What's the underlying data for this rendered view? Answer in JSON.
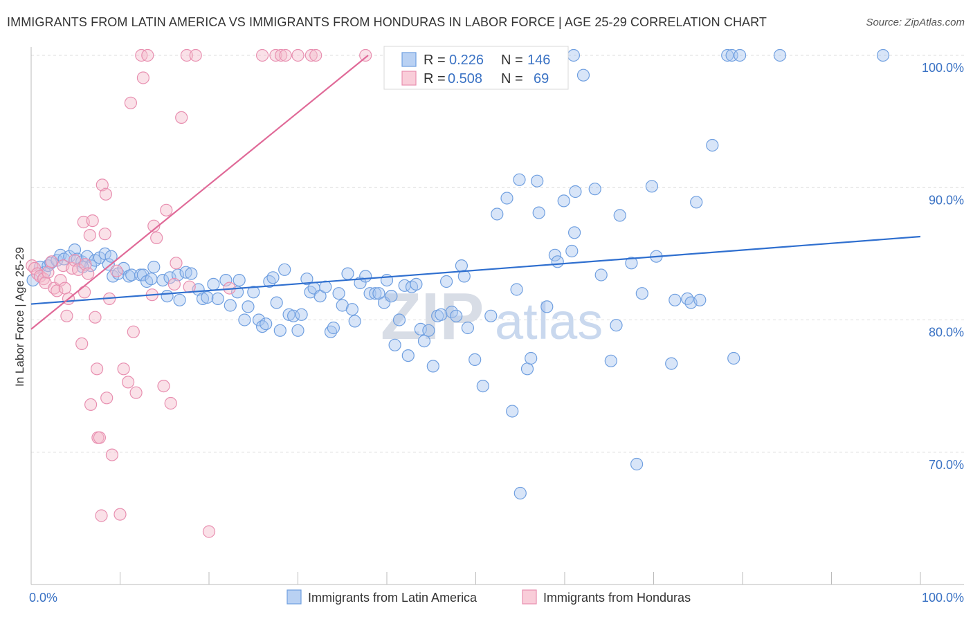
{
  "title": "IMMIGRANTS FROM LATIN AMERICA VS IMMIGRANTS FROM HONDURAS IN LABOR FORCE | AGE 25-29 CORRELATION CHART",
  "source": "Source: ZipAtlas.com",
  "watermark": {
    "zip": "ZIP",
    "atlas": "atlas"
  },
  "chart_data": {
    "type": "scatter",
    "xlabel": "",
    "ylabel": "In Labor Force | Age 25-29",
    "xlim": [
      0,
      100
    ],
    "ylim": [
      60,
      100
    ],
    "x_tick_labels": [
      "0.0%",
      "100.0%"
    ],
    "y_ticks": [
      70,
      80,
      90,
      100
    ],
    "y_tick_labels": [
      "70.0%",
      "80.0%",
      "90.0%",
      "100.0%"
    ],
    "grid": true,
    "legend_position": "bottom",
    "stats": [
      {
        "r_label": "R =",
        "r": "0.226",
        "n_label": "N =",
        "n": "146"
      },
      {
        "r_label": "R =",
        "r": "0.508",
        "n_label": "N =",
        "n": "69"
      }
    ],
    "series": [
      {
        "name": "Immigrants from Latin America",
        "color": "#6f9fe0",
        "fill": "#a9c6ef",
        "trend": {
          "x": [
            0,
            100
          ],
          "y": [
            81.2,
            86.3
          ]
        },
        "points": [
          [
            0.2,
            83.0
          ],
          [
            1.0,
            84.0
          ],
          [
            1.5,
            83.6
          ],
          [
            1.9,
            84.1
          ],
          [
            2.2,
            84.3
          ],
          [
            2.9,
            84.5
          ],
          [
            3.3,
            84.9
          ],
          [
            3.7,
            84.6
          ],
          [
            4.3,
            84.8
          ],
          [
            4.9,
            85.3
          ],
          [
            5.2,
            84.6
          ],
          [
            5.7,
            84.4
          ],
          [
            6.3,
            84.8
          ],
          [
            6.7,
            84.1
          ],
          [
            7.2,
            84.5
          ],
          [
            7.7,
            84.7
          ],
          [
            8.3,
            85.0
          ],
          [
            8.7,
            84.2
          ],
          [
            9.2,
            83.3
          ],
          [
            9.8,
            83.5
          ],
          [
            10.4,
            83.9
          ],
          [
            11.0,
            83.3
          ],
          [
            11.3,
            83.4
          ],
          [
            12.3,
            83.4
          ],
          [
            12.6,
            83.4
          ],
          [
            13.0,
            82.9
          ],
          [
            13.5,
            83.1
          ],
          [
            13.8,
            84.0
          ],
          [
            14.8,
            83.0
          ],
          [
            15.3,
            81.8
          ],
          [
            15.6,
            83.2
          ],
          [
            16.5,
            83.4
          ],
          [
            16.7,
            81.5
          ],
          [
            17.4,
            83.6
          ],
          [
            18.0,
            83.5
          ],
          [
            18.8,
            82.3
          ],
          [
            19.3,
            81.6
          ],
          [
            19.8,
            81.7
          ],
          [
            20.5,
            82.7
          ],
          [
            21.0,
            81.6
          ],
          [
            21.9,
            83.0
          ],
          [
            22.4,
            81.1
          ],
          [
            23.2,
            82.1
          ],
          [
            23.4,
            83.0
          ],
          [
            24.0,
            80.0
          ],
          [
            24.4,
            81.0
          ],
          [
            25.0,
            82.1
          ],
          [
            25.6,
            80.0
          ],
          [
            26.0,
            79.5
          ],
          [
            26.4,
            79.7
          ],
          [
            26.8,
            82.9
          ],
          [
            27.2,
            83.2
          ],
          [
            27.6,
            81.3
          ],
          [
            28.0,
            79.2
          ],
          [
            28.5,
            83.8
          ],
          [
            29.0,
            80.4
          ],
          [
            29.5,
            80.3
          ],
          [
            30.0,
            79.2
          ],
          [
            30.4,
            80.4
          ],
          [
            31.0,
            83.1
          ],
          [
            31.4,
            82.1
          ],
          [
            31.8,
            82.4
          ],
          [
            32.5,
            81.8
          ],
          [
            33.1,
            82.5
          ],
          [
            33.7,
            79.1
          ],
          [
            34.0,
            79.4
          ],
          [
            34.6,
            82.0
          ],
          [
            35.0,
            81.1
          ],
          [
            35.6,
            83.5
          ],
          [
            36.1,
            80.8
          ],
          [
            36.4,
            79.9
          ],
          [
            37.0,
            82.8
          ],
          [
            37.6,
            83.3
          ],
          [
            38.1,
            82.0
          ],
          [
            38.7,
            82.0
          ],
          [
            39.1,
            82.0
          ],
          [
            39.7,
            81.3
          ],
          [
            40.0,
            83.0
          ],
          [
            40.5,
            81.8
          ],
          [
            40.9,
            78.1
          ],
          [
            41.4,
            80.0
          ],
          [
            42.0,
            82.6
          ],
          [
            42.4,
            77.3
          ],
          [
            42.8,
            82.5
          ],
          [
            43.3,
            82.7
          ],
          [
            43.8,
            79.3
          ],
          [
            44.2,
            78.4
          ],
          [
            44.7,
            79.2
          ],
          [
            45.2,
            76.5
          ],
          [
            45.7,
            80.3
          ],
          [
            46.1,
            80.4
          ],
          [
            46.7,
            82.9
          ],
          [
            47.3,
            80.6
          ],
          [
            47.8,
            80.3
          ],
          [
            48.4,
            84.1
          ],
          [
            48.7,
            83.3
          ],
          [
            49.1,
            79.4
          ],
          [
            49.9,
            77.0
          ],
          [
            50.8,
            75.0
          ],
          [
            51.7,
            80.3
          ],
          [
            52.4,
            88.0
          ],
          [
            53.5,
            89.2
          ],
          [
            54.1,
            73.1
          ],
          [
            54.6,
            82.3
          ],
          [
            54.9,
            90.6
          ],
          [
            55.0,
            66.9
          ],
          [
            55.8,
            76.3
          ],
          [
            56.2,
            77.1
          ],
          [
            56.9,
            90.5
          ],
          [
            57.1,
            88.1
          ],
          [
            58.0,
            81.0
          ],
          [
            58.9,
            84.9
          ],
          [
            59.2,
            84.4
          ],
          [
            59.9,
            89.0
          ],
          [
            60.8,
            85.2
          ],
          [
            61.1,
            86.6
          ],
          [
            61.2,
            89.7
          ],
          [
            62.1,
            98.5
          ],
          [
            63.4,
            89.9
          ],
          [
            64.1,
            83.4
          ],
          [
            65.2,
            76.9
          ],
          [
            65.8,
            79.6
          ],
          [
            66.2,
            87.9
          ],
          [
            67.5,
            84.3
          ],
          [
            68.1,
            69.1
          ],
          [
            68.7,
            82.0
          ],
          [
            69.8,
            90.1
          ],
          [
            70.3,
            84.8
          ],
          [
            72.0,
            76.7
          ],
          [
            72.4,
            81.5
          ],
          [
            73.8,
            81.6
          ],
          [
            74.2,
            81.3
          ],
          [
            74.8,
            88.9
          ],
          [
            75.2,
            81.5
          ],
          [
            76.6,
            93.2
          ],
          [
            78.3,
            100.0
          ],
          [
            78.8,
            100.0
          ],
          [
            79.0,
            77.1
          ],
          [
            79.7,
            100.0
          ],
          [
            84.2,
            100.0
          ],
          [
            95.8,
            100.0
          ],
          [
            55.5,
            100.0
          ],
          [
            57.8,
            100.0
          ],
          [
            61.0,
            100.0
          ],
          [
            5.8,
            84.0
          ],
          [
            9.0,
            84.8
          ]
        ]
      },
      {
        "name": "Immigrants from Honduras",
        "color": "#e88fb0",
        "fill": "#f5bccd",
        "trend": {
          "x": [
            0,
            37.9
          ],
          "y": [
            79.3,
            100.0
          ]
        },
        "points": [
          [
            0.1,
            84.1
          ],
          [
            0.4,
            83.9
          ],
          [
            0.7,
            83.5
          ],
          [
            1.0,
            83.3
          ],
          [
            1.4,
            83.1
          ],
          [
            1.6,
            82.8
          ],
          [
            1.9,
            83.6
          ],
          [
            2.3,
            84.4
          ],
          [
            2.6,
            82.4
          ],
          [
            2.9,
            82.2
          ],
          [
            3.3,
            83.0
          ],
          [
            3.6,
            84.1
          ],
          [
            3.8,
            82.4
          ],
          [
            4.0,
            80.3
          ],
          [
            4.2,
            81.6
          ],
          [
            4.6,
            83.9
          ],
          [
            4.9,
            84.5
          ],
          [
            5.3,
            83.8
          ],
          [
            5.7,
            78.2
          ],
          [
            5.9,
            87.4
          ],
          [
            6.0,
            82.1
          ],
          [
            6.1,
            84.2
          ],
          [
            6.4,
            83.5
          ],
          [
            6.6,
            86.4
          ],
          [
            6.7,
            73.6
          ],
          [
            6.9,
            87.5
          ],
          [
            7.2,
            80.2
          ],
          [
            7.4,
            76.3
          ],
          [
            7.5,
            71.1
          ],
          [
            7.7,
            71.1
          ],
          [
            7.9,
            65.2
          ],
          [
            8.0,
            90.2
          ],
          [
            8.3,
            86.5
          ],
          [
            8.4,
            89.5
          ],
          [
            8.5,
            74.1
          ],
          [
            8.8,
            81.6
          ],
          [
            9.1,
            69.8
          ],
          [
            9.6,
            83.7
          ],
          [
            10.0,
            65.3
          ],
          [
            10.4,
            76.3
          ],
          [
            10.9,
            75.3
          ],
          [
            11.2,
            96.4
          ],
          [
            11.5,
            79.1
          ],
          [
            11.8,
            74.5
          ],
          [
            12.4,
            100.0
          ],
          [
            12.6,
            98.3
          ],
          [
            13.1,
            100.0
          ],
          [
            13.6,
            81.9
          ],
          [
            13.8,
            87.1
          ],
          [
            14.1,
            86.2
          ],
          [
            14.9,
            75.0
          ],
          [
            15.2,
            88.3
          ],
          [
            15.7,
            73.7
          ],
          [
            16.1,
            82.7
          ],
          [
            16.3,
            84.3
          ],
          [
            16.9,
            95.3
          ],
          [
            17.5,
            100.0
          ],
          [
            17.8,
            82.5
          ],
          [
            18.5,
            100.0
          ],
          [
            20.0,
            64.0
          ],
          [
            22.3,
            82.4
          ],
          [
            26.0,
            100.0
          ],
          [
            27.5,
            100.0
          ],
          [
            28.1,
            100.0
          ],
          [
            28.6,
            100.0
          ],
          [
            30.0,
            100.0
          ],
          [
            31.5,
            100.0
          ],
          [
            32.0,
            100.0
          ],
          [
            37.6,
            100.0
          ]
        ]
      }
    ]
  }
}
